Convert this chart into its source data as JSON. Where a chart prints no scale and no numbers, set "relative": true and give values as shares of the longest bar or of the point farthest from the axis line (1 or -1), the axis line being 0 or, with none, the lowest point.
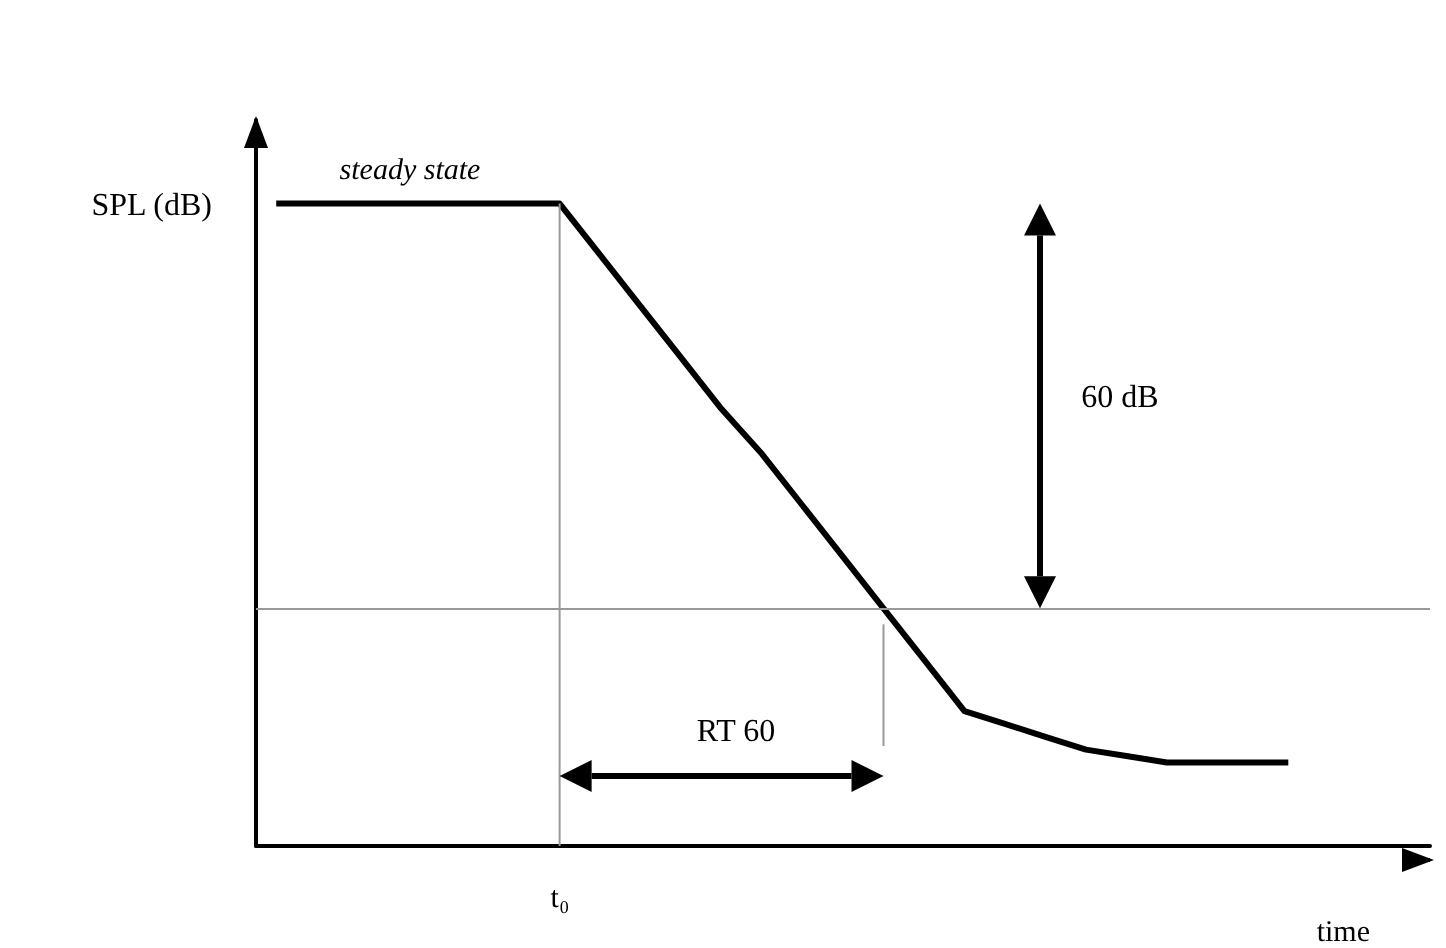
{
  "chart_data": {
    "type": "line",
    "relative": true,
    "xlabel": "time",
    "ylabel": "SPL (dB)",
    "categories": [
      null,
      null,
      null,
      null,
      null,
      null,
      null,
      null,
      null,
      null,
      null,
      null,
      null,
      null,
      null,
      null,
      null,
      null,
      null,
      null,
      null,
      null,
      null,
      null,
      null,
      null,
      null,
      null,
      null
    ],
    "series": [
      {
        "color": "#000000",
        "values": [
          1,
          1,
          1,
          1,
          1,
          1,
          1,
          1,
          0.92,
          0.84,
          0.76,
          0.68,
          0.61,
          0.53,
          0.45,
          0.37,
          0.29,
          0.21,
          0.19,
          0.17,
          0.15,
          0.14,
          0.13,
          0.13,
          0.13,
          0.13,
          null,
          null,
          null
        ]
      }
    ],
    "ref_lines": [
      {
        "axis": "y",
        "value": 0.37,
        "color": "#999999"
      }
    ],
    "annotations": [
      "steady state",
      "60 dB",
      "RT 60",
      "t₀"
    ],
    "grid": false,
    "marker": "none",
    "line_style": "solid"
  }
}
